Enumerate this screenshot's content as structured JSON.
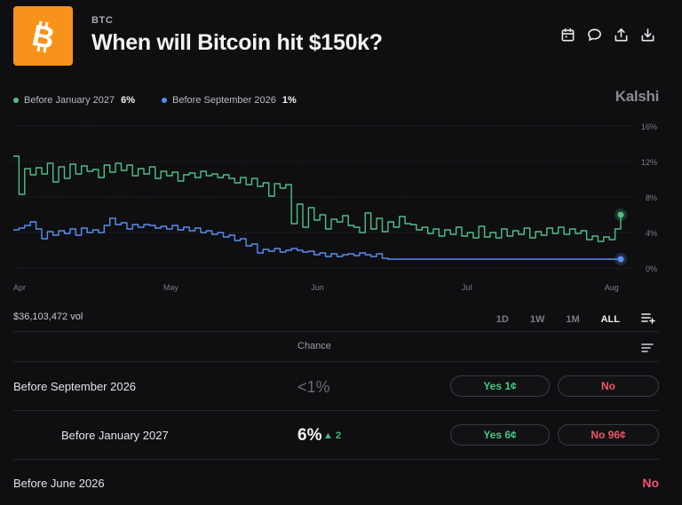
{
  "market": {
    "ticker": "BTC",
    "title": "When will Bitcoin hit $150k?",
    "icon": "bitcoin-logo"
  },
  "toolbar": {
    "icons": [
      "calendar-icon",
      "comment-icon",
      "share-icon",
      "download-icon"
    ]
  },
  "legend": [
    {
      "label": "Before January 2027",
      "pct": "6%",
      "color": "#4fbf86"
    },
    {
      "label": "Before September 2026",
      "pct": "1%",
      "color": "#5b8def"
    }
  ],
  "brand": "Kalshi",
  "volume": "$36,103,472 vol",
  "ranges": {
    "items": [
      "1D",
      "1W",
      "1M",
      "ALL"
    ],
    "active": "ALL"
  },
  "table": {
    "header": "Chance",
    "rows": [
      {
        "label": "Before September 2026",
        "chance": "<1%",
        "yes": "Yes 1¢",
        "no": "No"
      },
      {
        "label": "Before January 2027",
        "chance": "6%",
        "delta": "▲ 2",
        "yes": "Yes 6¢",
        "no": "No 96¢"
      },
      {
        "label": "Before June 2026",
        "no": "No"
      }
    ]
  },
  "chart_data": {
    "type": "line",
    "x_ticks": [
      "Apr",
      "May",
      "Jun",
      "Jul",
      "Aug"
    ],
    "y_ticks": [
      "16%",
      "12%",
      "8%",
      "4%",
      "0%"
    ],
    "ylim": [
      0,
      16
    ],
    "grid": true,
    "series": [
      {
        "name": "Before January 2027",
        "color": "#4fbf86",
        "values": [
          12.6,
          8.3,
          11.2,
          10.5,
          11.3,
          10.6,
          11.8,
          9.7,
          11.4,
          10.1,
          11.7,
          10.6,
          11.5,
          10.9,
          11.1,
          10.2,
          11.6,
          10.8,
          11.8,
          11.0,
          11.6,
          10.4,
          11.2,
          10.6,
          11.4,
          10.1,
          10.9,
          10.4,
          10.8,
          9.8,
          10.5,
          10.7,
          10.2,
          10.9,
          10.4,
          10.6,
          10.2,
          10.5,
          10.1,
          9.6,
          10.2,
          9.4,
          10.1,
          9.2,
          9.6,
          8.1,
          9.5,
          9.0,
          9.4,
          5.0,
          7.2,
          4.6,
          6.8,
          5.4,
          6.0,
          4.4,
          5.5,
          5.2,
          5.9,
          4.8,
          4.6,
          4.0,
          6.2,
          4.4,
          5.6,
          4.1,
          5.2,
          4.6,
          5.8,
          5.0,
          4.9,
          4.3,
          4.6,
          3.9,
          4.4,
          3.6,
          4.3,
          3.8,
          4.6,
          3.6,
          4.0,
          3.4,
          4.7,
          3.5,
          4.0,
          3.4,
          4.4,
          3.6,
          4.2,
          3.8,
          4.5,
          3.4,
          4.1,
          3.7,
          4.5,
          3.9,
          4.6,
          3.8,
          4.4,
          3.9,
          4.2,
          3.2,
          3.6,
          3.0,
          3.5,
          3.2,
          4.4,
          6.0
        ]
      },
      {
        "name": "Before September 2026",
        "color": "#5b8def",
        "values": [
          4.3,
          4.5,
          4.8,
          5.2,
          4.4,
          3.3,
          4.1,
          3.7,
          4.2,
          3.9,
          4.4,
          3.7,
          4.5,
          4.0,
          4.3,
          4.0,
          4.8,
          5.6,
          4.9,
          5.1,
          4.4,
          4.9,
          4.6,
          4.9,
          4.8,
          4.5,
          4.7,
          4.4,
          4.8,
          4.3,
          4.6,
          4.2,
          4.5,
          4.0,
          4.2,
          3.8,
          4.0,
          3.5,
          3.7,
          3.1,
          3.3,
          2.5,
          2.7,
          1.7,
          2.1,
          1.9,
          2.2,
          1.8,
          2.0,
          2.2,
          2.0,
          1.8,
          1.9,
          1.5,
          1.7,
          1.3,
          1.6,
          1.3,
          1.5,
          1.6,
          1.4,
          1.7,
          1.5,
          1.3,
          1.6,
          1.1,
          1.0,
          1.0,
          1.0,
          1.0,
          1.0,
          1.0,
          1.0,
          1.0,
          1.0,
          1.0,
          1.0,
          1.0,
          1.0,
          1.0,
          1.0,
          1.0,
          1.0,
          1.0,
          1.0,
          1.0,
          1.0,
          1.0,
          1.0,
          1.0,
          1.0,
          1.0,
          1.0,
          1.0,
          1.0,
          1.0,
          1.0,
          1.0,
          1.0,
          1.0,
          1.0,
          1.0,
          1.0,
          1.0,
          1.0,
          1.0,
          1.0,
          1.0
        ]
      }
    ]
  }
}
